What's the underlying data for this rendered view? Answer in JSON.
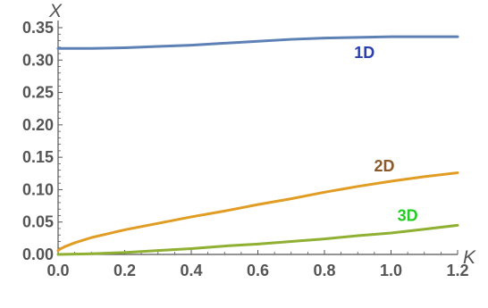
{
  "chart_data": {
    "type": "line",
    "title": "",
    "xlabel": "K",
    "ylabel": "X",
    "xlim": [
      0,
      1.2
    ],
    "ylim": [
      0,
      0.35
    ],
    "x_ticks": [
      "0.0",
      "0.2",
      "0.4",
      "0.6",
      "0.8",
      "1.0",
      "1.2"
    ],
    "y_ticks": [
      "0.00",
      "0.05",
      "0.10",
      "0.15",
      "0.20",
      "0.25",
      "0.30",
      "0.35"
    ],
    "grid": false,
    "series": [
      {
        "name": "1D",
        "color": "#5e81b5",
        "label_color": "#2a3fb0",
        "label_at": [
          0.92,
          0.303
        ],
        "x": [
          0,
          0.1,
          0.2,
          0.3,
          0.4,
          0.5,
          0.6,
          0.7,
          0.8,
          0.9,
          1.0,
          1.1,
          1.2
        ],
        "y": [
          0.318,
          0.318,
          0.319,
          0.321,
          0.323,
          0.326,
          0.329,
          0.332,
          0.334,
          0.335,
          0.336,
          0.336,
          0.336
        ]
      },
      {
        "name": "2D",
        "color": "#e19c24",
        "label_color": "#8b5a2b",
        "label_at": [
          0.98,
          0.128
        ],
        "x": [
          0,
          0.005,
          0.02,
          0.05,
          0.1,
          0.2,
          0.3,
          0.4,
          0.5,
          0.6,
          0.7,
          0.8,
          0.9,
          1.0,
          1.1,
          1.2
        ],
        "y": [
          0.006,
          0.008,
          0.012,
          0.018,
          0.026,
          0.038,
          0.048,
          0.058,
          0.067,
          0.077,
          0.086,
          0.096,
          0.105,
          0.113,
          0.12,
          0.126
        ]
      },
      {
        "name": "3D",
        "color": "#8fb032",
        "label_color": "#22cc22",
        "label_at": [
          1.05,
          0.052
        ],
        "x": [
          0,
          0.1,
          0.2,
          0.3,
          0.4,
          0.5,
          0.6,
          0.7,
          0.8,
          0.9,
          1.0,
          1.1,
          1.2
        ],
        "y": [
          0.0,
          0.001,
          0.003,
          0.006,
          0.009,
          0.013,
          0.016,
          0.02,
          0.024,
          0.029,
          0.033,
          0.039,
          0.045
        ]
      }
    ]
  }
}
